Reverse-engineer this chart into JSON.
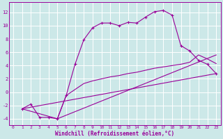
{
  "background_color": "#cce8e8",
  "grid_color": "#aacccc",
  "line_color": "#990099",
  "xlabel": "Windchill (Refroidissement éolien,°C)",
  "xlim": [
    -0.5,
    23.5
  ],
  "ylim": [
    -5,
    13.5
  ],
  "yticks": [
    -4,
    -2,
    0,
    2,
    4,
    6,
    8,
    10,
    12
  ],
  "xticks": [
    0,
    1,
    2,
    3,
    4,
    5,
    6,
    7,
    8,
    9,
    10,
    11,
    12,
    13,
    14,
    15,
    16,
    17,
    18,
    19,
    20,
    21,
    22,
    23
  ],
  "line1_x": [
    1,
    2,
    3,
    4,
    5,
    6,
    7,
    8,
    9,
    10,
    11,
    12,
    13,
    14,
    15,
    16,
    17,
    18,
    19,
    20,
    21,
    22,
    23
  ],
  "line1_y": [
    -2.5,
    -1.8,
    -3.8,
    -3.8,
    -4.0,
    -0.5,
    4.2,
    7.9,
    9.7,
    10.4,
    10.4,
    10.0,
    10.5,
    10.4,
    11.3,
    12.1,
    12.3,
    11.6,
    7.0,
    6.2,
    4.8,
    4.2,
    2.8
  ],
  "line2_x": [
    1,
    23
  ],
  "line2_y": [
    -2.5,
    2.8
  ],
  "line3_x": [
    1,
    5,
    23
  ],
  "line3_y": [
    -2.5,
    -4.0,
    5.6
  ],
  "line4_x": [
    5,
    6,
    7,
    8,
    9,
    10,
    11,
    12,
    13,
    14,
    15,
    16,
    17,
    18,
    19,
    20,
    21,
    22,
    23
  ],
  "line4_y": [
    -4.0,
    -0.5,
    0.4,
    1.3,
    1.7,
    2.0,
    2.3,
    2.5,
    2.8,
    3.0,
    3.3,
    3.6,
    3.8,
    4.0,
    4.2,
    4.5,
    5.6,
    5.0,
    4.3
  ]
}
